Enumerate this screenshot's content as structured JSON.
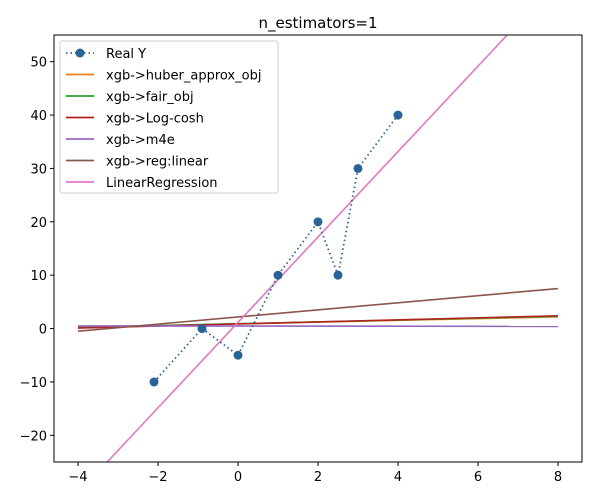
{
  "chart_data": {
    "type": "line",
    "title": "n_estimators=1",
    "xlabel": "",
    "ylabel": "",
    "xlim": [
      -4.6,
      8.6
    ],
    "ylim": [
      -25,
      55
    ],
    "xticks": [
      -4,
      -2,
      0,
      2,
      4,
      6,
      8
    ],
    "yticks": [
      -20,
      -10,
      0,
      10,
      20,
      30,
      40,
      50
    ],
    "xtick_labels": [
      "−4",
      "−2",
      "0",
      "2",
      "4",
      "6",
      "8"
    ],
    "ytick_labels": [
      "−20",
      "−10",
      "0",
      "10",
      "20",
      "30",
      "40",
      "50"
    ],
    "grid": false,
    "legend_position": "upper-left",
    "series": [
      {
        "name": "Real Y",
        "color": "#2a6496",
        "style": "dotted-with-markers",
        "x": [
          -2.1,
          -0.9,
          0,
          1,
          2,
          2.5,
          3,
          4
        ],
        "y": [
          -10,
          0,
          -5,
          10,
          20,
          10,
          30,
          40
        ]
      },
      {
        "name": "xgb->huber_approx_obj",
        "color": "#ff7f0e",
        "style": "solid",
        "x": [
          -4,
          8
        ],
        "y": [
          0.2,
          2.2
        ]
      },
      {
        "name": "xgb->fair_obj",
        "color": "#2ca02c",
        "style": "solid",
        "x": [
          -4,
          8
        ],
        "y": [
          0.2,
          2.3
        ]
      },
      {
        "name": "xgb->Log-cosh",
        "color": "#b22222",
        "style": "solid",
        "x": [
          -4,
          8
        ],
        "y": [
          0.1,
          2.4
        ]
      },
      {
        "name": "xgb->m4e",
        "color": "#9467bd",
        "style": "solid",
        "x": [
          -4,
          8
        ],
        "y": [
          0.5,
          0.4
        ]
      },
      {
        "name": "xgb->reg:linear",
        "color": "#8c564b",
        "style": "solid",
        "x": [
          -4,
          8
        ],
        "y": [
          -0.5,
          7.5
        ]
      },
      {
        "name": "LinearRegression",
        "color": "#e377c2",
        "style": "solid",
        "x": [
          -3.27,
          6.73
        ],
        "y": [
          -25,
          55
        ]
      }
    ]
  }
}
